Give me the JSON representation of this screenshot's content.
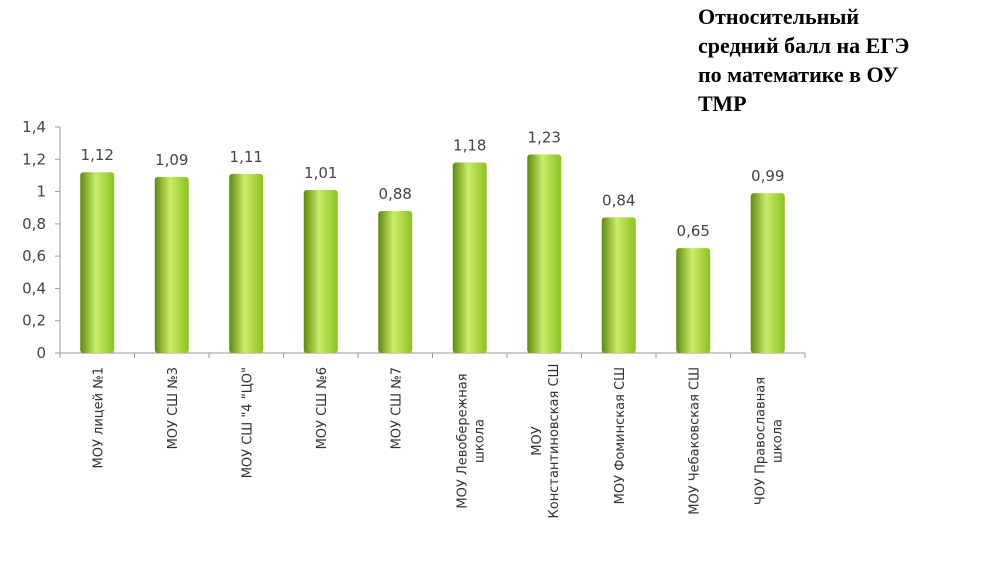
{
  "chart_data": {
    "type": "bar",
    "title_lines": [
      "Относительный",
      "средний балл  на ЕГЭ",
      "по математике в ОУ",
      "ТМР"
    ],
    "categories": [
      [
        "МОУ лицей №1"
      ],
      [
        "МОУ СШ №3"
      ],
      [
        "МОУ СШ \"4 \"ЦО\""
      ],
      [
        "МОУ СШ №6"
      ],
      [
        "МОУ СШ №7"
      ],
      [
        "МОУ Левобережная",
        "школа"
      ],
      [
        "МОУ",
        "Константиновская СШ"
      ],
      [
        "МОУ Фоминская СШ"
      ],
      [
        "МОУ Чебаковская СШ"
      ],
      [
        "ЧОУ Православная",
        "школа"
      ]
    ],
    "values": [
      1.12,
      1.09,
      1.11,
      1.01,
      0.88,
      1.18,
      1.23,
      0.84,
      0.65,
      0.99
    ],
    "value_labels": [
      "1,12",
      "1,09",
      "1,11",
      "1,01",
      "0,88",
      "1,18",
      "1,23",
      "0,84",
      "0,65",
      "0,99"
    ],
    "ylim": [
      0,
      1.4
    ],
    "yticks": [
      0,
      0.2,
      0.4,
      0.6,
      0.8,
      1,
      1.2,
      1.4
    ],
    "ytick_labels": [
      "0",
      "0,2",
      "0,4",
      "0,6",
      "0,8",
      "1",
      "1,2",
      "1,4"
    ],
    "xlabel": "",
    "ylabel": "",
    "grid": false,
    "legend": "none",
    "bar_color": "#8dc21f",
    "bar_highlight": "#c9ec6a",
    "bar_shadow": "#5e8a0c"
  }
}
